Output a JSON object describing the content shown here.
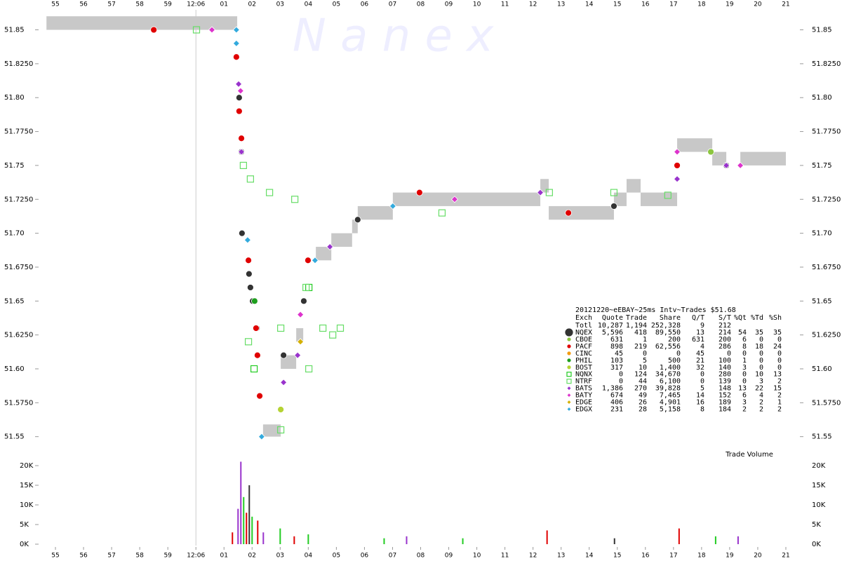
{
  "chart_data": {
    "type": "scatter",
    "watermark": "N a n e x",
    "volume_label": "Trade Volume",
    "xlim": [
      54.4,
      81.5
    ],
    "xticks": [
      55,
      56,
      57,
      58,
      59,
      {
        "value": 60,
        "label": "12:06"
      },
      {
        "value": 61,
        "label": "01"
      },
      {
        "value": 62,
        "label": "02"
      },
      {
        "value": 63,
        "label": "03"
      },
      {
        "value": 64,
        "label": "04"
      },
      {
        "value": 65,
        "label": "05"
      },
      {
        "value": 66,
        "label": "06"
      },
      {
        "value": 67,
        "label": "07"
      },
      {
        "value": 68,
        "label": "08"
      },
      {
        "value": 69,
        "label": "09"
      },
      {
        "value": 70,
        "label": "10"
      },
      {
        "value": 71,
        "label": "11"
      },
      {
        "value": 72,
        "label": "12"
      },
      {
        "value": 73,
        "label": "13"
      },
      {
        "value": 74,
        "label": "14"
      },
      {
        "value": 75,
        "label": "15"
      },
      {
        "value": 76,
        "label": "16"
      },
      {
        "value": 77,
        "label": "17"
      },
      {
        "value": 78,
        "label": "18"
      },
      {
        "value": 79,
        "label": "19"
      },
      {
        "value": 80,
        "label": "20"
      },
      {
        "value": 81,
        "label": "21"
      }
    ],
    "ylim": [
      51.54,
      51.872
    ],
    "yticks": [
      51.85,
      {
        "value": 51.825,
        "label": "51.8250"
      },
      {
        "value": 51.8,
        "label": "51.80"
      },
      {
        "value": 51.775,
        "label": "51.7750"
      },
      51.75,
      {
        "value": 51.725,
        "label": "51.7250"
      },
      {
        "value": 51.7,
        "label": "51.70"
      },
      {
        "value": 51.675,
        "label": "51.6750"
      },
      51.65,
      {
        "value": 51.625,
        "label": "51.6250"
      },
      {
        "value": 51.6,
        "label": "51.60"
      },
      {
        "value": 51.575,
        "label": "51.5750"
      },
      51.55
    ],
    "y2lim": [
      0,
      21000
    ],
    "y2ticks": [
      {
        "value": 20000,
        "label": "20K"
      },
      {
        "value": 15000,
        "label": "15K"
      },
      {
        "value": 10000,
        "label": "10K"
      },
      {
        "value": 5000,
        "label": "5K"
      },
      {
        "value": 0,
        "label": "0K"
      }
    ],
    "nbbo": {
      "color": "#c8c8c8",
      "x0": [
        54.68,
        62.39,
        63.02,
        63.57,
        64.27,
        64.82,
        65.56,
        65.76,
        67.01,
        72.26,
        72.56,
        74.88,
        75.33,
        75.83,
        77.13,
        78.38,
        79.38
      ],
      "x1": [
        61.47,
        63.02,
        63.57,
        63.82,
        64.82,
        65.56,
        65.76,
        67.01,
        72.26,
        72.56,
        74.88,
        75.33,
        75.83,
        77.13,
        78.38,
        78.88,
        81.0
      ],
      "bid": [
        51.85,
        51.55,
        51.6,
        51.62,
        51.68,
        51.69,
        51.7,
        51.71,
        51.72,
        51.73,
        51.71,
        51.72,
        51.73,
        51.72,
        51.76,
        51.75,
        51.75
      ],
      "ask": [
        51.86,
        51.559,
        51.61,
        51.63,
        51.69,
        51.7,
        51.71,
        51.72,
        51.73,
        51.74,
        51.72,
        51.73,
        51.74,
        51.73,
        51.77,
        51.76,
        51.76
      ]
    },
    "series": [
      {
        "name": "NQEX",
        "color": "#333333",
        "marker": "circle",
        "x": [
          61.54,
          61.62,
          61.64,
          61.89,
          61.94,
          62.02,
          62.17,
          63.12,
          63.84,
          65.76,
          74.88,
          78.88
        ],
        "values": [
          51.8,
          51.76,
          51.7,
          51.67,
          51.66,
          51.65,
          51.63,
          51.61,
          51.65,
          51.71,
          51.72,
          51.75
        ]
      },
      {
        "name": "CBOE",
        "color": "#8cc63f",
        "marker": "circle",
        "x": [
          78.33
        ],
        "values": [
          51.76
        ]
      },
      {
        "name": "PACF",
        "color": "#e00000",
        "marker": "circle",
        "x": [
          58.5,
          61.44,
          61.54,
          61.62,
          61.87,
          62.14,
          62.19,
          62.27,
          63.99,
          67.96,
          73.26,
          77.13
        ],
        "values": [
          51.85,
          51.83,
          51.79,
          51.77,
          51.68,
          51.63,
          51.61,
          51.58,
          51.68,
          51.73,
          51.715,
          51.75
        ]
      },
      {
        "name": "CINC",
        "color": "#f39c12",
        "marker": "circle",
        "x": [],
        "values": []
      },
      {
        "name": "PHIL",
        "color": "#1e9e1e",
        "marker": "circle",
        "x": [
          62.09
        ],
        "values": [
          51.65
        ]
      },
      {
        "name": "BOST",
        "color": "#b5d334",
        "marker": "circle",
        "x": [
          63.02
        ],
        "values": [
          51.57
        ]
      },
      {
        "name": "NQNX",
        "color": "#22cc22",
        "marker": "square",
        "x": [
          64.02,
          62.07
        ],
        "values": [
          51.66,
          51.6
        ]
      },
      {
        "name": "NTRF",
        "color": "#66dd66",
        "marker": "square",
        "x": [
          60.02,
          61.69,
          61.94,
          62.62,
          63.52,
          63.02,
          64.52,
          64.87,
          65.14,
          63.92,
          64.02,
          68.76,
          72.58,
          74.88,
          76.8,
          61.87,
          63.02
        ],
        "values": [
          51.85,
          51.75,
          51.74,
          51.73,
          51.725,
          51.63,
          51.63,
          51.625,
          51.63,
          51.66,
          51.6,
          51.715,
          51.73,
          51.73,
          51.728,
          51.62,
          51.555
        ]
      },
      {
        "name": "BATS",
        "color": "#9933cc",
        "marker": "diamond",
        "x": [
          61.52,
          61.62,
          63.12,
          63.62,
          64.77,
          72.26,
          77.13,
          78.88
        ],
        "values": [
          51.81,
          51.76,
          51.59,
          51.61,
          51.69,
          51.73,
          51.74,
          51.75
        ]
      },
      {
        "name": "BATY",
        "color": "#dd33cc",
        "marker": "diamond",
        "x": [
          60.57,
          61.59,
          69.21,
          63.72,
          79.38,
          77.13
        ],
        "values": [
          51.85,
          51.805,
          51.725,
          51.64,
          51.75,
          51.76
        ]
      },
      {
        "name": "EDGE",
        "color": "#d4b000",
        "marker": "diamond",
        "x": [
          63.72
        ],
        "values": [
          51.62
        ]
      },
      {
        "name": "EDGX",
        "color": "#33aadd",
        "marker": "diamond",
        "x": [
          61.44,
          61.44,
          61.84,
          62.34,
          64.24,
          67.01
        ],
        "values": [
          51.85,
          51.84,
          51.695,
          51.55,
          51.68,
          51.72
        ]
      }
    ],
    "volume": {
      "x": [
        61.3,
        61.5,
        61.6,
        61.7,
        61.8,
        61.9,
        62.0,
        62.2,
        62.4,
        63.0,
        63.5,
        64.0,
        66.7,
        67.5,
        69.5,
        72.5,
        74.9,
        77.2,
        78.5,
        79.3
      ],
      "values": [
        3000,
        9000,
        21000,
        12000,
        8000,
        15000,
        7000,
        6000,
        3000,
        4000,
        2000,
        2500,
        1500,
        2000,
        1500,
        3500,
        1500,
        4000,
        2000,
        2000
      ],
      "colors": [
        "#e00000",
        "#9933cc",
        "#9933cc",
        "#22cc22",
        "#e00000",
        "#333333",
        "#22cc22",
        "#e00000",
        "#9933cc",
        "#22cc22",
        "#e00000",
        "#22cc22",
        "#22cc22",
        "#9933cc",
        "#22cc22",
        "#e00000",
        "#333333",
        "#e00000",
        "#22cc22",
        "#9933cc"
      ]
    },
    "legend_table": {
      "title": "20121220~eEBAY~25ms Intv~Trades $51.68",
      "columns": [
        "Exch",
        "Quote",
        "Trade",
        "Share",
        "Q/T",
        "S/T",
        "%Qt",
        "%Td",
        "%Sh"
      ],
      "total": [
        "Totl",
        "10,287",
        "1,194",
        "252,328",
        "9",
        "212"
      ],
      "rows": [
        [
          "5,596",
          "418",
          "89,550",
          "13",
          "214",
          "54",
          "35",
          "35"
        ],
        [
          "631",
          "1",
          "200",
          "631",
          "200",
          "6",
          "0",
          "0"
        ],
        [
          "898",
          "219",
          "62,556",
          "4",
          "286",
          "8",
          "18",
          "24"
        ],
        [
          "45",
          "0",
          "0",
          "45",
          "0",
          "0",
          "0",
          "0"
        ],
        [
          "103",
          "5",
          "500",
          "21",
          "100",
          "1",
          "0",
          "0"
        ],
        [
          "317",
          "10",
          "1,400",
          "32",
          "140",
          "3",
          "0",
          "0"
        ],
        [
          "0",
          "124",
          "34,670",
          "0",
          "280",
          "0",
          "10",
          "13"
        ],
        [
          "0",
          "44",
          "6,100",
          "0",
          "139",
          "0",
          "3",
          "2"
        ],
        [
          "1,386",
          "270",
          "39,828",
          "5",
          "148",
          "13",
          "22",
          "15"
        ],
        [
          "674",
          "49",
          "7,465",
          "14",
          "152",
          "6",
          "4",
          "2"
        ],
        [
          "406",
          "26",
          "4,901",
          "16",
          "189",
          "3",
          "2",
          "1"
        ],
        [
          "231",
          "28",
          "5,158",
          "8",
          "184",
          "2",
          "2",
          "2"
        ]
      ]
    }
  }
}
